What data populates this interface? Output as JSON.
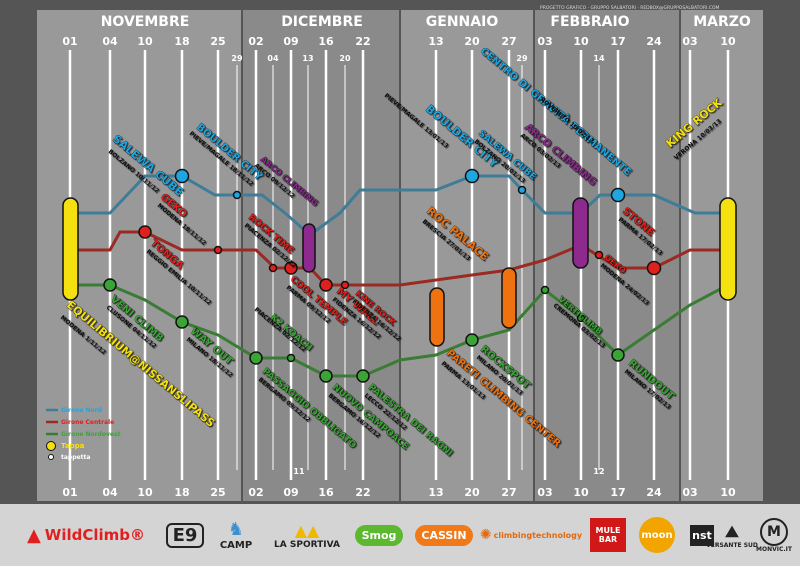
{
  "months": [
    "NOVEMBRE",
    "DICEMBRE",
    "GENNAIO",
    "FEBBRAIO",
    "MARZO"
  ],
  "dates_top": [
    "01",
    "04",
    "10",
    "18",
    "25",
    "02",
    "09",
    "16",
    "22",
    "13",
    "20",
    "27",
    "03",
    "10",
    "17",
    "24",
    "03",
    "10"
  ],
  "dates_top_sub": [
    "29",
    "04",
    "13",
    "20",
    "29",
    "14"
  ],
  "dates_bottom": [
    "01",
    "04",
    "10",
    "18",
    "25",
    "02",
    "09",
    "16",
    "22",
    "13",
    "20",
    "27",
    "03",
    "10",
    "17",
    "24",
    "03",
    "10"
  ],
  "dates_bottom_sub": [
    "11",
    "12"
  ],
  "credits": "PROGETTO GRAFICO · GRUPPO SALBATORI · REDBOX@GRUPPOSALBATORI.COM",
  "legend": {
    "north": "Girone Nord",
    "central": "Girone Centrale",
    "northwest": "Girone Nordovest",
    "tappa": "Tappa",
    "tappetta": "tappetta"
  },
  "colors": {
    "north": "#1ea6e0",
    "central": "#e0201c",
    "northwest": "#3aa535",
    "line_north": "#3f7c98",
    "line_central": "#9a2a22",
    "line_northwest": "#3a7c34",
    "purple": "#8e2a8e",
    "orange": "#ee7310",
    "yellow": "#f5e10f",
    "panel": "#999999",
    "panel_alt": "#8a8a8a",
    "background": "#555555"
  },
  "stations": {
    "equilibrium": {
      "name": "EQUILIBRIUM@NISSANSLIPASS",
      "sub": "MODENA 1/11/12"
    },
    "salewa_cube": {
      "name": "SALEWA CUBE",
      "sub": "BOLZANO 10/11/12"
    },
    "boulder_city_1": {
      "name": "BOULDER CITY",
      "sub": "PIEVE/MAGALE 18/11/12"
    },
    "arco_climbing_1": {
      "name": "ARCO CLIMBING",
      "sub": "ARCO 09/12/12"
    },
    "geko_1": {
      "name": "GEKO",
      "sub": "MODENA 18/11/12"
    },
    "rock_time": {
      "name": "ROCK TIME",
      "sub": "PIACENZA 02/12/12"
    },
    "tonga": {
      "name": "TONGA",
      "sub": "REGGIO EMILIA 10/11/12"
    },
    "cool_temple": {
      "name": "COOL TEMPLE",
      "sub": "PARMA 09/12/12"
    },
    "my_wall": {
      "name": "MY WALL",
      "sub": "FIDENZA 16/12/12"
    },
    "kine_rock": {
      "name": "KINE ROCK",
      "sub": "FIDENZA 16/12/12"
    },
    "veni_climb": {
      "name": "VENI CLIMB",
      "sub": "CLUSONE 04/11/12"
    },
    "way_out": {
      "name": "WAY OUT",
      "sub": "MILANO 18/11/12"
    },
    "k2_koach": {
      "name": "K2 KOACH",
      "sub": "PIACENZA 02/12/12"
    },
    "passaggio_obbligato": {
      "name": "PASSAGGIO OBBLIGATO",
      "sub": "BERGAMO 09/12/12"
    },
    "nuovo_campoace": {
      "name": "NUOVO CAMPOACE",
      "sub": "BERGAMO 16/12/12"
    },
    "palestra_dei_ragni": {
      "name": "PALESTRA DEI RAGNI",
      "sub": "LECCO 22/12/12"
    },
    "boulder_city_2": {
      "name": "BOULDER CITY",
      "sub": "PIEVE/MAGALE 13/01/13"
    },
    "salewa_cube_2": {
      "name": "SALEWA CUBE",
      "sub": "BOLZANO 20/01/13"
    },
    "centro_gravita": {
      "name": "CENTRO DI GRAVITÀ PERMANENTE",
      "sub": "ROVERETO 10/02/13"
    },
    "arco_climbing_2": {
      "name": "ARCO CLIMBING",
      "sub": "ARCO 03/02/13"
    },
    "roc_palace": {
      "name": "ROC PALACE",
      "sub": "BRESCIA 27/01/13"
    },
    "stone": {
      "name": "STONE",
      "sub": "PARMA 17/02/13"
    },
    "geko_2": {
      "name": "GEKO",
      "sub": "MODENA 24/02/13"
    },
    "pareti_climbing": {
      "name": "PARETI CLIMBING CENTER",
      "sub": "PARMA 13/01/13"
    },
    "rockspot": {
      "name": "ROCKSPOT",
      "sub": "MILANO 20/01/13"
    },
    "verticalmente": {
      "name": "VERTICLIMB",
      "sub": "CREMONA 03/02/13"
    },
    "rundout": {
      "name": "RUNDOUT",
      "sub": "MILANO 17/02/13"
    },
    "king_rock": {
      "name": "KING ROCK",
      "sub": "VERONA 10/03/13"
    }
  },
  "sponsors": [
    "WildClimb®",
    "E9",
    "CAMP",
    "LA SPORTIVA",
    "Smog",
    "CASSIN",
    "climbingtechnology",
    "MULE BAR",
    "moon",
    "nst",
    "VERSANTE SUD",
    "MONVIC.IT"
  ]
}
